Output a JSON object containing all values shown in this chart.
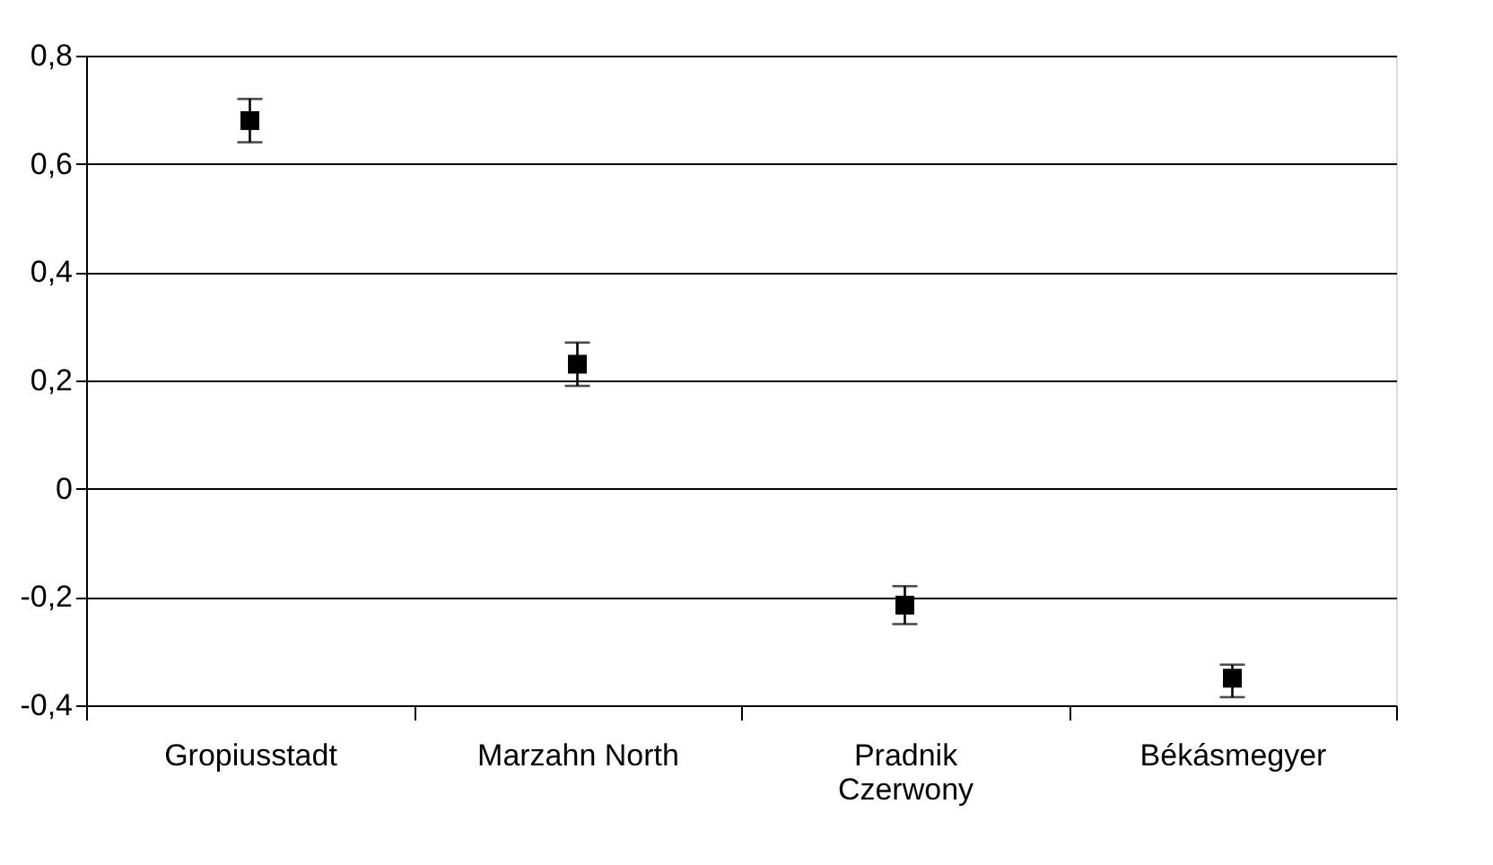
{
  "chart_data": {
    "type": "scatter",
    "categories": [
      "Gropiusstadt",
      "Marzahn North",
      "Pradnik Czerwony",
      "Békásmegyer"
    ],
    "series": [
      {
        "color": "#000000",
        "values": [
          0.68,
          0.23,
          -0.215,
          -0.35
        ],
        "errors": [
          [
            0.64,
            0.72
          ],
          [
            0.19,
            0.27
          ],
          [
            -0.25,
            -0.18
          ],
          [
            -0.385,
            -0.325
          ]
        ]
      }
    ],
    "ylim": [
      -0.4,
      0.8
    ],
    "yticks": [
      {
        "value": -0.4,
        "label": "-0,4"
      },
      {
        "value": -0.2,
        "label": "-0,2"
      },
      0,
      {
        "value": 0.2,
        "label": "0,2"
      },
      {
        "value": 0.4,
        "label": "0,4"
      },
      {
        "value": 0.6,
        "label": "0,6"
      },
      {
        "value": 0.8,
        "label": "0,8"
      }
    ],
    "grid": "y",
    "marker": "square"
  }
}
